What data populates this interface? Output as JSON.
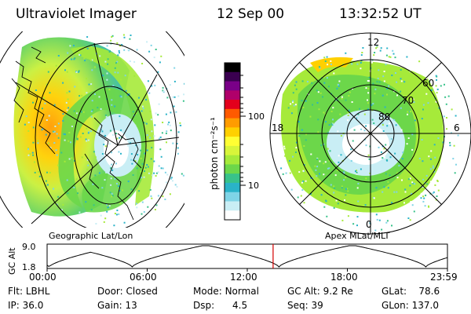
{
  "header": {
    "title": "Ultraviolet Imager",
    "date": "12 Sep 00",
    "time": "13:32:52 UT"
  },
  "colorbar": {
    "unit_label": "photon cm⁻²s⁻¹",
    "tick_labels": [
      "100",
      "10"
    ],
    "colors": [
      "#000000",
      "#3a0050",
      "#7a0088",
      "#b0006a",
      "#e3001c",
      "#ff5a00",
      "#ff9c00",
      "#ffd000",
      "#ffff33",
      "#d8f53a",
      "#a6ea3a",
      "#6cd74a",
      "#38c28a",
      "#2ab3c8",
      "#7fd4e6",
      "#c9eef5",
      "#ffffff"
    ]
  },
  "left_panel": {
    "caption": "Geographic Lat/Lon"
  },
  "right_panel": {
    "caption": "Apex MLat/MLT",
    "mlt_labels": {
      "top": "12",
      "left": "18",
      "right": "6",
      "bottom": "0"
    },
    "lat_labels": [
      "60",
      "70",
      "80"
    ]
  },
  "altitude_plot": {
    "ylabel": "GC Alt",
    "y_ticks": [
      "9.0",
      "1.8"
    ],
    "x_ticks": [
      "00:00",
      "06:00",
      "12:00",
      "18:00",
      "23:59"
    ],
    "current_time_marker_hours": 13.55,
    "marker_color": "#d40000"
  },
  "info": {
    "flt_label": "Flt:",
    "flt_value": "LBHL",
    "ip_label": "IP:",
    "ip_value": "36.0",
    "door_label": "Door:",
    "door_value": "Closed",
    "gain_label": "Gain:",
    "gain_value": "13",
    "mode_label": "Mode:",
    "mode_value": "Normal",
    "dsp_label": "Dsp:",
    "dsp_value": "4.5",
    "gcalt_label": "GC Alt:",
    "gcalt_value": "9.2 Re",
    "seq_label": "Seq:",
    "seq_value": "39",
    "glat_label": "GLat:",
    "glat_value": "78.6",
    "glon_label": "GLon:",
    "glon_value": "137.0"
  }
}
